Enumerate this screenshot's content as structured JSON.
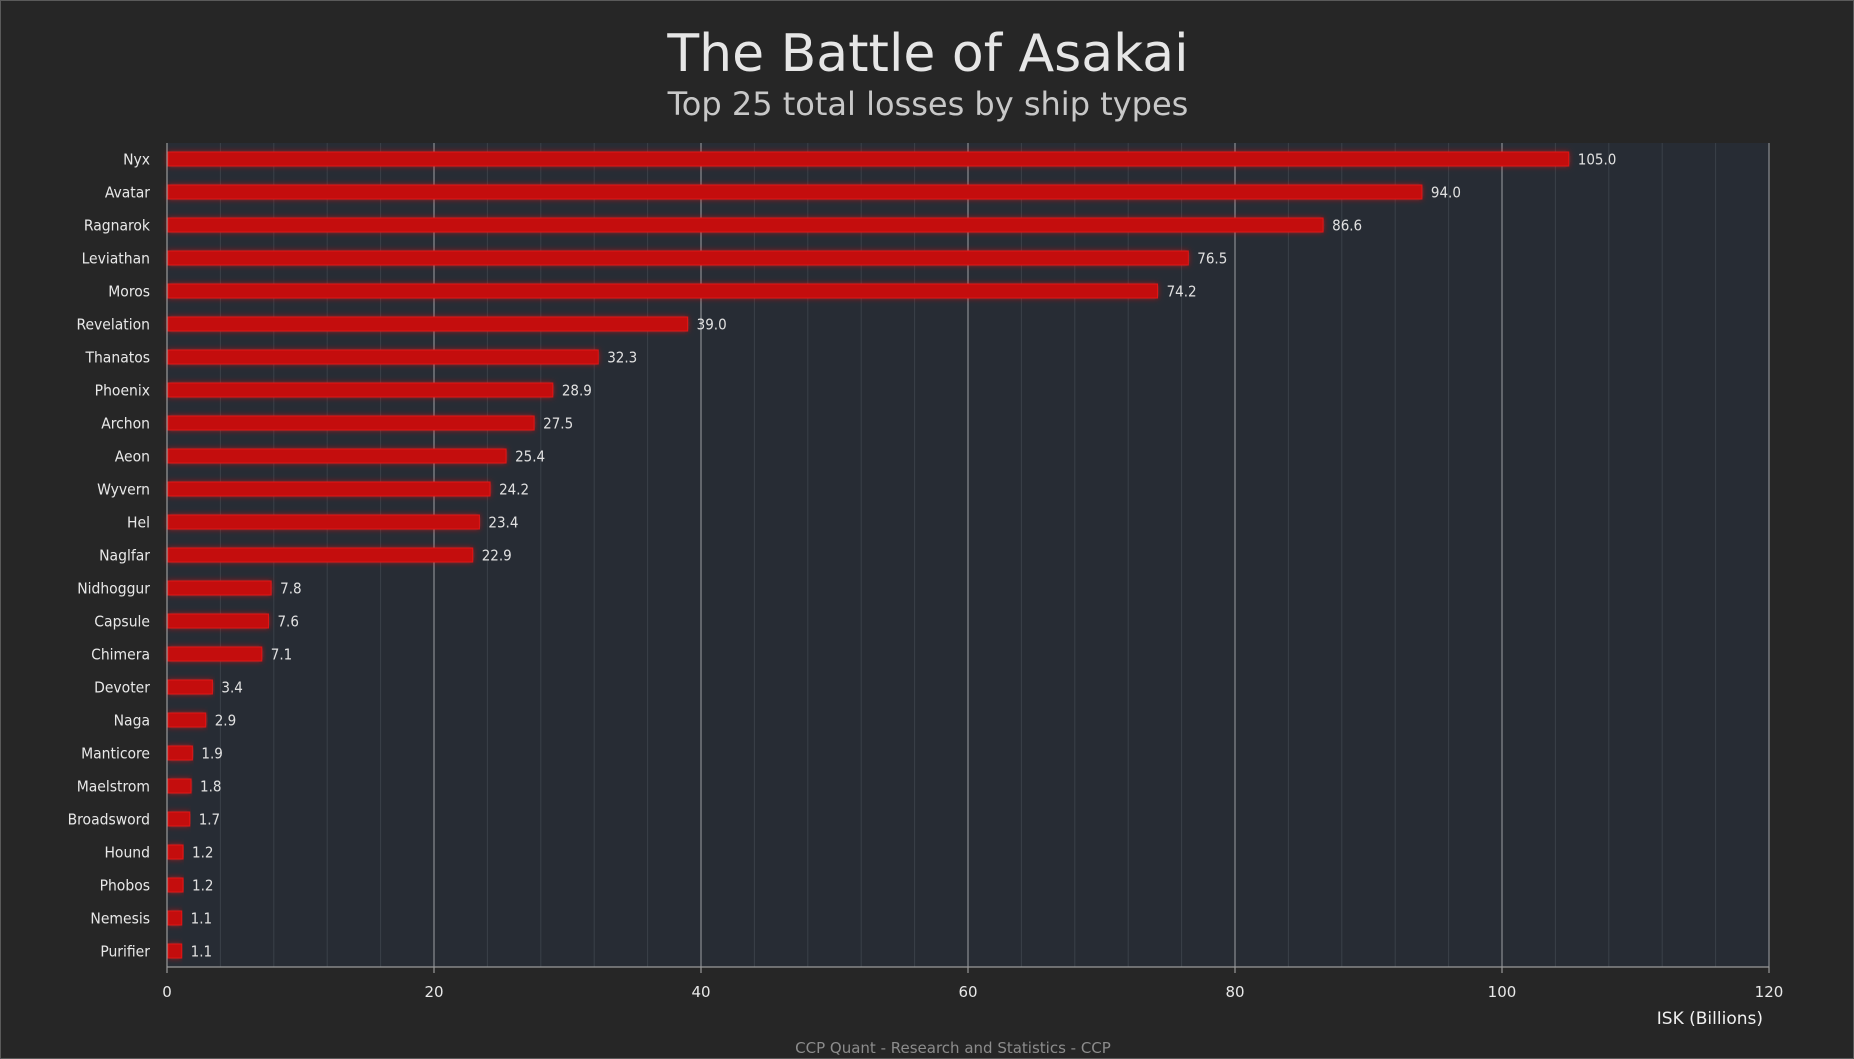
{
  "chart_data": {
    "type": "bar",
    "orientation": "horizontal",
    "title": "The Battle of Asakai",
    "subtitle": "Top 25 total losses by ship types",
    "xlabel": "ISK (Billions)",
    "credit": "CCP Quant - Research and Statistics - CCP",
    "xlim": [
      0,
      120
    ],
    "x_ticks": [
      0,
      20,
      40,
      60,
      80,
      100,
      120
    ],
    "grid": true,
    "categories": [
      "Nyx",
      "Avatar",
      "Ragnarok",
      "Leviathan",
      "Moros",
      "Revelation",
      "Thanatos",
      "Phoenix",
      "Archon",
      "Aeon",
      "Wyvern",
      "Hel",
      "Naglfar",
      "Nidhoggur",
      "Capsule",
      "Chimera",
      "Devoter",
      "Naga",
      "Manticore",
      "Maelstrom",
      "Broadsword",
      "Hound",
      "Phobos",
      "Nemesis",
      "Purifier"
    ],
    "values": [
      105.0,
      94.0,
      86.6,
      76.5,
      74.2,
      39.0,
      32.3,
      28.9,
      27.5,
      25.4,
      24.2,
      23.4,
      22.9,
      7.8,
      7.6,
      7.1,
      3.4,
      2.9,
      1.9,
      1.8,
      1.7,
      1.2,
      1.2,
      1.1,
      1.1
    ],
    "value_labels": [
      "105.0",
      "94.0",
      "86.6",
      "76.5",
      "74.2",
      "39.0",
      "32.3",
      "28.9",
      "27.5",
      "25.4",
      "24.2",
      "23.4",
      "22.9",
      "7.8",
      "7.6",
      "7.1",
      "3.4",
      "2.9",
      "1.9",
      "1.8",
      "1.7",
      "1.2",
      "1.2",
      "1.1",
      "1.1"
    ],
    "colors": {
      "background": "#262626",
      "plot_background": "#272c34",
      "bar_fill": "#c40808",
      "bar_glow": "#ff2020",
      "major_grid": "#8a8d92",
      "minor_grid": "#3a4048"
    }
  }
}
